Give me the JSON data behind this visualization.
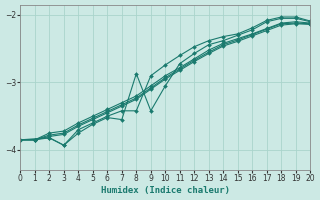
{
  "xlabel": "Humidex (Indice chaleur)",
  "ylabel": "",
  "xlim": [
    0,
    20
  ],
  "ylim": [
    -4.3,
    -1.85
  ],
  "yticks": [
    -4,
    -3,
    -2
  ],
  "xticks": [
    0,
    1,
    2,
    3,
    4,
    5,
    6,
    7,
    8,
    9,
    10,
    11,
    12,
    13,
    14,
    15,
    16,
    17,
    18,
    19,
    20
  ],
  "bg_color": "#cce9e4",
  "line_color": "#1a7a6e",
  "grid_color": "#aad4cc",
  "lines": [
    {
      "x": [
        0,
        1,
        2,
        3,
        4,
        5,
        6,
        7,
        8,
        9,
        10,
        11,
        12,
        13,
        14,
        15,
        16,
        17,
        18,
        19,
        20
      ],
      "y": [
        -3.85,
        -3.85,
        -3.75,
        -3.72,
        -3.6,
        -3.5,
        -3.4,
        -3.3,
        -3.2,
        -3.05,
        -2.9,
        -2.78,
        -2.65,
        -2.52,
        -2.42,
        -2.35,
        -2.28,
        -2.2,
        -2.12,
        -2.1,
        -2.12
      ]
    },
    {
      "x": [
        0,
        1,
        2,
        3,
        4,
        5,
        6,
        7,
        8,
        9,
        10,
        11,
        12,
        13,
        14,
        15,
        16,
        17,
        18,
        19,
        20
      ],
      "y": [
        -3.85,
        -3.85,
        -3.78,
        -3.75,
        -3.63,
        -3.53,
        -3.43,
        -3.33,
        -3.23,
        -3.08,
        -2.93,
        -2.8,
        -2.67,
        -2.55,
        -2.44,
        -2.37,
        -2.29,
        -2.21,
        -2.13,
        -2.12,
        -2.13
      ]
    },
    {
      "x": [
        0,
        1,
        2,
        3,
        4,
        5,
        6,
        7,
        8,
        9,
        10,
        11,
        12,
        13,
        14,
        15,
        16,
        17,
        18,
        19,
        20
      ],
      "y": [
        -3.85,
        -3.85,
        -3.8,
        -3.77,
        -3.65,
        -3.55,
        -3.45,
        -3.35,
        -3.25,
        -3.1,
        -2.95,
        -2.82,
        -2.69,
        -2.57,
        -2.46,
        -2.39,
        -2.31,
        -2.23,
        -2.15,
        -2.13,
        -2.14
      ]
    },
    {
      "x": [
        0,
        1,
        2,
        3,
        4,
        5,
        6,
        7,
        8,
        9,
        10,
        11,
        12,
        13,
        14,
        15,
        16,
        17,
        18,
        19,
        20
      ],
      "y": [
        -3.85,
        -3.85,
        -3.82,
        -3.93,
        -3.7,
        -3.6,
        -3.5,
        -3.42,
        -3.42,
        -2.9,
        -2.74,
        -2.6,
        -2.47,
        -2.38,
        -2.32,
        -2.28,
        -2.19,
        -2.08,
        -2.03,
        -2.03,
        -2.09
      ]
    },
    {
      "x": [
        0,
        2,
        3,
        4,
        5,
        6,
        7,
        8,
        9,
        10,
        11,
        12,
        13,
        14,
        15,
        16,
        17,
        18,
        19,
        20
      ],
      "y": [
        -3.85,
        -3.82,
        -3.93,
        -3.75,
        -3.62,
        -3.52,
        -3.55,
        -2.87,
        -3.42,
        -3.05,
        -2.72,
        -2.57,
        -2.44,
        -2.38,
        -2.3,
        -2.22,
        -2.1,
        -2.05,
        -2.05,
        -2.1
      ]
    }
  ]
}
